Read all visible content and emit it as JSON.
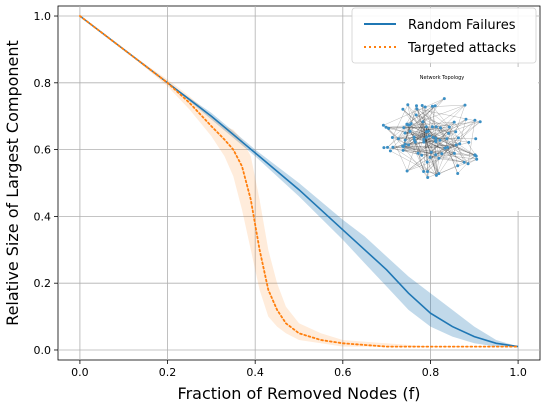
{
  "chart_data": {
    "type": "line",
    "xlabel": "Fraction of Removed Nodes (f)",
    "ylabel": "Relative Size of Largest Component",
    "xlim": [
      -0.05,
      1.05
    ],
    "ylim": [
      -0.03,
      1.03
    ],
    "xticks": [
      "0.0",
      "0.2",
      "0.4",
      "0.6",
      "0.8",
      "1.0"
    ],
    "yticks": [
      "0.0",
      "0.2",
      "0.4",
      "0.6",
      "0.8",
      "1.0"
    ],
    "grid": true,
    "legend_position": "top-right",
    "series": [
      {
        "name": "Random Failures",
        "style": "solid",
        "color": "#1f77b4",
        "x": [
          0.0,
          0.1,
          0.2,
          0.3,
          0.4,
          0.5,
          0.6,
          0.65,
          0.7,
          0.75,
          0.8,
          0.85,
          0.9,
          0.95,
          1.0
        ],
        "y": [
          1.0,
          0.9,
          0.8,
          0.7,
          0.59,
          0.48,
          0.36,
          0.3,
          0.24,
          0.17,
          0.11,
          0.07,
          0.04,
          0.02,
          0.01
        ],
        "lower": [
          1.0,
          0.9,
          0.8,
          0.69,
          0.58,
          0.46,
          0.33,
          0.26,
          0.19,
          0.12,
          0.07,
          0.04,
          0.02,
          0.01,
          0.01
        ],
        "upper": [
          1.0,
          0.9,
          0.8,
          0.71,
          0.6,
          0.5,
          0.39,
          0.34,
          0.28,
          0.22,
          0.17,
          0.12,
          0.07,
          0.03,
          0.01
        ]
      },
      {
        "name": "Targeted attacks",
        "style": "dotted",
        "color": "#ff7f0e",
        "x": [
          0.0,
          0.1,
          0.2,
          0.25,
          0.3,
          0.33,
          0.35,
          0.37,
          0.39,
          0.41,
          0.43,
          0.45,
          0.47,
          0.5,
          0.55,
          0.6,
          0.7,
          0.8,
          1.0
        ],
        "y": [
          1.0,
          0.9,
          0.8,
          0.74,
          0.67,
          0.63,
          0.6,
          0.55,
          0.45,
          0.3,
          0.18,
          0.12,
          0.08,
          0.05,
          0.03,
          0.02,
          0.01,
          0.01,
          0.01
        ],
        "lower": [
          1.0,
          0.9,
          0.79,
          0.72,
          0.64,
          0.58,
          0.52,
          0.42,
          0.3,
          0.18,
          0.1,
          0.07,
          0.05,
          0.03,
          0.02,
          0.01,
          0.01,
          0.01,
          0.01
        ],
        "upper": [
          1.0,
          0.9,
          0.81,
          0.76,
          0.7,
          0.67,
          0.66,
          0.63,
          0.58,
          0.45,
          0.3,
          0.2,
          0.13,
          0.08,
          0.05,
          0.03,
          0.02,
          0.01,
          0.01
        ]
      }
    ],
    "inset": {
      "title": "Network Topology",
      "type": "network-graph"
    }
  }
}
